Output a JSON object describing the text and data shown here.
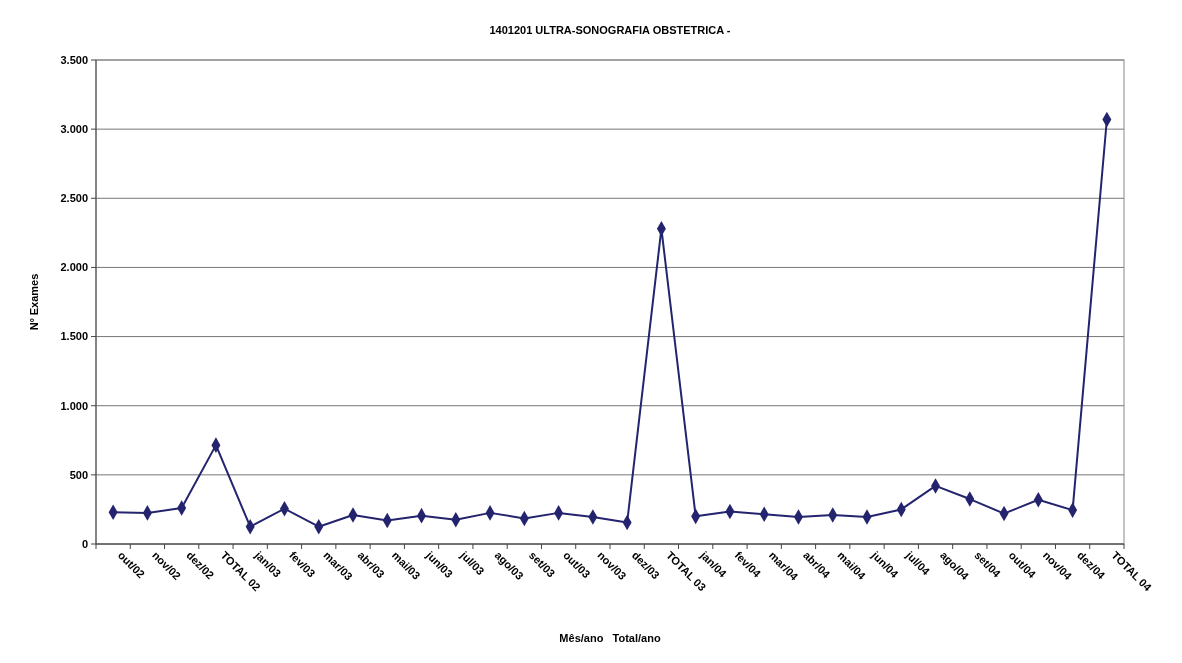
{
  "chart_data": {
    "type": "line",
    "title": "1401201 ULTRA-SONOGRAFIA OBSTETRICA -",
    "xlabel": "Mês/ano   Total/ano",
    "ylabel": "Nº Exames",
    "categories": [
      "out/02",
      "nov/02",
      "dez/02",
      "TOTAL 02",
      "jan/03",
      "fev/03",
      "mar/03",
      "abr/03",
      "mai/03",
      "jun/03",
      "jul/03",
      "ago/03",
      "set/03",
      "out/03",
      "nov/03",
      "dez/03",
      "TOTAL 03",
      "jan/04",
      "fev/04",
      "mar/04",
      "abr/04",
      "mai/04",
      "jun/04",
      "jul/04",
      "ago/04",
      "set/04",
      "out/04",
      "nov/04",
      "dez/04",
      "TOTAL 04"
    ],
    "series": [
      {
        "color": "#24246e",
        "values": [
          230,
          225,
          260,
          715,
          125,
          255,
          125,
          210,
          170,
          205,
          175,
          225,
          185,
          225,
          195,
          155,
          2280,
          200,
          235,
          215,
          195,
          210,
          195,
          250,
          420,
          325,
          220,
          320,
          245,
          3070
        ]
      }
    ],
    "ylim": [
      0,
      3500
    ],
    "yticks": [
      {
        "value": 0,
        "label": "0"
      },
      {
        "value": 500,
        "label": "500"
      },
      {
        "value": 1000,
        "label": "1.000"
      },
      {
        "value": 1500,
        "label": "1.500"
      },
      {
        "value": 2000,
        "label": "2.000"
      },
      {
        "value": 2500,
        "label": "2.500"
      },
      {
        "value": 3000,
        "label": "3.000"
      },
      {
        "value": 3500,
        "label": "3.500"
      }
    ],
    "grid": "y",
    "marker": "diamond",
    "line_style": "solid"
  }
}
